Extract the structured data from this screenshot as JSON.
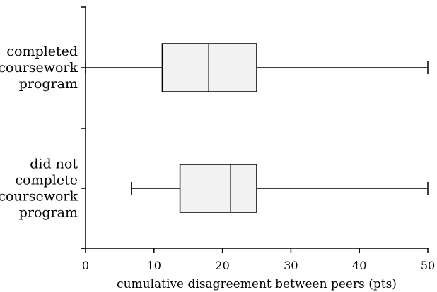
{
  "chart_data": {
    "type": "boxplot",
    "orientation": "horizontal",
    "xlabel": "cumulative disagreement between peers (pts)",
    "xlim": [
      0,
      50
    ],
    "xticks": [
      "0",
      "10",
      "20",
      "30",
      "40",
      "50"
    ],
    "grid": false,
    "categories": [
      {
        "label_lines": [
          "completed",
          "coursework",
          "program"
        ],
        "min": 0,
        "q1": 11.2,
        "median": 18,
        "q3": 25,
        "max": 50
      },
      {
        "label_lines": [
          "did not",
          "complete",
          "coursework",
          "program"
        ],
        "min": 6.7,
        "q1": 13.8,
        "median": 21.2,
        "q3": 25,
        "max": 50
      }
    ]
  }
}
